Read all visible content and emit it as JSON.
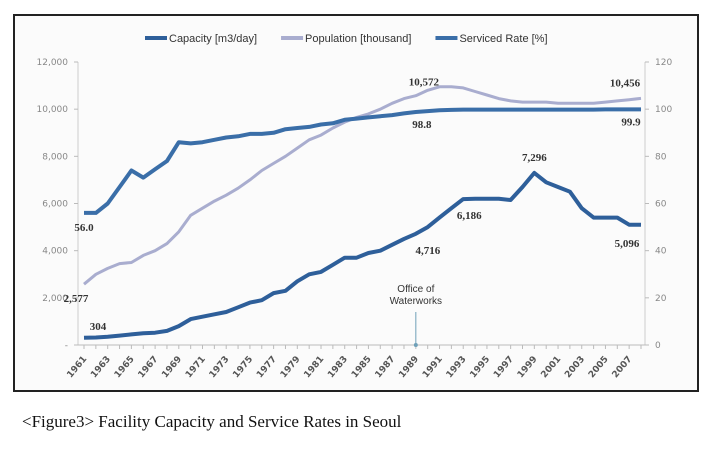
{
  "chart_data": {
    "type": "line",
    "title": "",
    "caption": "<Figure3> Facility Capacity and Service Rates in Seoul",
    "legend_position": "top",
    "grid": false,
    "x": [
      1961,
      1962,
      1963,
      1964,
      1965,
      1966,
      1967,
      1968,
      1969,
      1970,
      1971,
      1972,
      1973,
      1974,
      1975,
      1976,
      1977,
      1978,
      1979,
      1980,
      1981,
      1982,
      1983,
      1984,
      1985,
      1986,
      1987,
      1988,
      1989,
      1990,
      1991,
      1992,
      1993,
      1994,
      1995,
      1996,
      1997,
      1998,
      1999,
      2000,
      2001,
      2002,
      2003,
      2004,
      2005,
      2006,
      2007,
      2008
    ],
    "x_tick_labels": [
      "1961",
      "1963",
      "1965",
      "1967",
      "1969",
      "1971",
      "1973",
      "1975",
      "1977",
      "1979",
      "1981",
      "1983",
      "1985",
      "1987",
      "1989",
      "1991",
      "1993",
      "1995",
      "1997",
      "1999",
      "2001",
      "2003",
      "2005",
      "2007"
    ],
    "y_left": {
      "range": [
        0,
        12000
      ],
      "tick_labels": [
        "-",
        "2,000",
        "4,000",
        "6,000",
        "8,000",
        "10,000",
        "12,000"
      ]
    },
    "y_right": {
      "range": [
        0,
        120
      ],
      "tick_labels": [
        "0",
        "20",
        "40",
        "60",
        "80",
        "100",
        "120"
      ]
    },
    "series": [
      {
        "name": "Capacity [m3/day]",
        "axis": "left",
        "color": "#2e5f9a",
        "values": [
          304,
          320,
          350,
          400,
          450,
          500,
          520,
          600,
          800,
          1100,
          1200,
          1300,
          1400,
          1600,
          1800,
          1900,
          2200,
          2300,
          2700,
          3000,
          3100,
          3400,
          3700,
          3700,
          3900,
          4000,
          4250,
          4500,
          4716,
          5000,
          5400,
          5800,
          6186,
          6200,
          6200,
          6200,
          6150,
          6700,
          7296,
          6900,
          6700,
          6500,
          5800,
          5400,
          5400,
          5400,
          5100,
          5096
        ]
      },
      {
        "name": "Population [thousand]",
        "axis": "left",
        "color": "#a9adcf",
        "values": [
          2577,
          3000,
          3250,
          3450,
          3500,
          3800,
          4000,
          4300,
          4800,
          5500,
          5800,
          6100,
          6350,
          6650,
          7000,
          7400,
          7700,
          8000,
          8350,
          8700,
          8900,
          9200,
          9450,
          9650,
          9800,
          10000,
          10250,
          10450,
          10572,
          10800,
          10950,
          10950,
          10900,
          10750,
          10600,
          10450,
          10350,
          10300,
          10300,
          10300,
          10250,
          10250,
          10250,
          10250,
          10300,
          10350,
          10400,
          10456
        ]
      },
      {
        "name": "Serviced Rate [%]",
        "axis": "right",
        "color": "#3a6ea8",
        "values": [
          56.0,
          56.0,
          60.0,
          67.0,
          74.0,
          71.0,
          74.5,
          78.0,
          86.0,
          85.5,
          86.0,
          87.0,
          88.0,
          88.5,
          89.5,
          89.5,
          90.0,
          91.5,
          92.0,
          92.5,
          93.5,
          94.0,
          95.5,
          96.0,
          96.5,
          97.0,
          97.5,
          98.2,
          98.8,
          99.2,
          99.5,
          99.7,
          99.8,
          99.8,
          99.8,
          99.8,
          99.8,
          99.8,
          99.8,
          99.8,
          99.8,
          99.8,
          99.8,
          99.8,
          99.9,
          99.9,
          99.9,
          99.9
        ]
      }
    ],
    "data_labels": [
      {
        "series": 0,
        "x": 1961,
        "text": "304"
      },
      {
        "series": 0,
        "x": 1989,
        "text": "4,716"
      },
      {
        "series": 0,
        "x": 1993,
        "text": "6,186"
      },
      {
        "series": 0,
        "x": 1999,
        "text": "7,296"
      },
      {
        "series": 0,
        "x": 2008,
        "text": "5,096"
      },
      {
        "series": 1,
        "x": 1961,
        "text": "2,577"
      },
      {
        "series": 1,
        "x": 1989,
        "text": "10,572"
      },
      {
        "series": 1,
        "x": 2008,
        "text": "10,456"
      },
      {
        "series": 2,
        "x": 1961,
        "text": "56.0"
      },
      {
        "series": 2,
        "x": 1989,
        "text": "98.8"
      },
      {
        "series": 2,
        "x": 2008,
        "text": "99.9"
      }
    ],
    "annotations": [
      {
        "x": 1989,
        "text_lines": [
          "Office of",
          "Waterworks"
        ]
      }
    ]
  }
}
